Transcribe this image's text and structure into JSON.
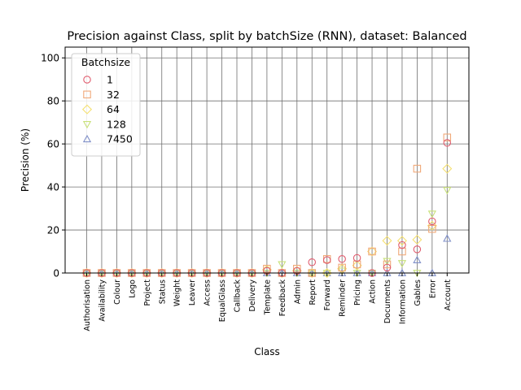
{
  "chart_data": {
    "type": "scatter",
    "title": "Precision against Class, split by batchSize (RNN), dataset: Balanced",
    "xlabel": "Class",
    "ylabel": "Precision (%)",
    "ylim": [
      0,
      105
    ],
    "yticks": [
      0,
      20,
      40,
      60,
      80,
      100
    ],
    "grid": true,
    "legend": {
      "title": "Batchsize",
      "placement": "top-left"
    },
    "categories": [
      "Authorisation",
      "Availability",
      "Colour",
      "Logo",
      "Project",
      "Status",
      "Weight",
      "Leaver",
      "Access",
      "EqualGlass",
      "Callback",
      "Delivery",
      "Template",
      "Feedback",
      "Admin",
      "Report",
      "Forward",
      "Reminder",
      "Pricing",
      "Action",
      "Documents",
      "Information",
      "Gables",
      "Error",
      "Account"
    ],
    "series": [
      {
        "name": "1",
        "marker": "circle",
        "color": "#e05c6e",
        "values": [
          0,
          0,
          0,
          0,
          0,
          0,
          0,
          0,
          0,
          0,
          0,
          0,
          1,
          0,
          1,
          5,
          6,
          6.5,
          7,
          0,
          2.5,
          13,
          11,
          24,
          60.5
        ]
      },
      {
        "name": "32",
        "marker": "square",
        "color": "#f0a878",
        "values": [
          0,
          0,
          0,
          0,
          0,
          0,
          0,
          0,
          0,
          0,
          0,
          0,
          2,
          0,
          2,
          0,
          6.5,
          2.5,
          4,
          10,
          4,
          10,
          48.5,
          20.5,
          63
        ]
      },
      {
        "name": "64",
        "marker": "diamond",
        "color": "#f5e070",
        "values": [
          0,
          0,
          0,
          0,
          0,
          0,
          0,
          0,
          0,
          0,
          0,
          0,
          1.5,
          0,
          1,
          0,
          0,
          2,
          3.5,
          10,
          15,
          15,
          15.5,
          22,
          48.5
        ]
      },
      {
        "name": "128",
        "marker": "triangle-down",
        "color": "#c8e07a",
        "values": [
          0,
          0,
          0,
          0,
          0,
          0,
          0,
          0,
          0,
          0,
          0,
          0,
          0,
          4,
          0,
          0,
          0,
          1,
          0,
          0,
          5.5,
          4.5,
          0,
          27.5,
          38.5
        ]
      },
      {
        "name": "7450",
        "marker": "triangle-up",
        "color": "#8090c8",
        "values": [
          0,
          0,
          0,
          0,
          0,
          0,
          0,
          0,
          0,
          0,
          0,
          0,
          0,
          0,
          0,
          0,
          0,
          0,
          0,
          0,
          0,
          0,
          6,
          0,
          16
        ]
      }
    ]
  }
}
